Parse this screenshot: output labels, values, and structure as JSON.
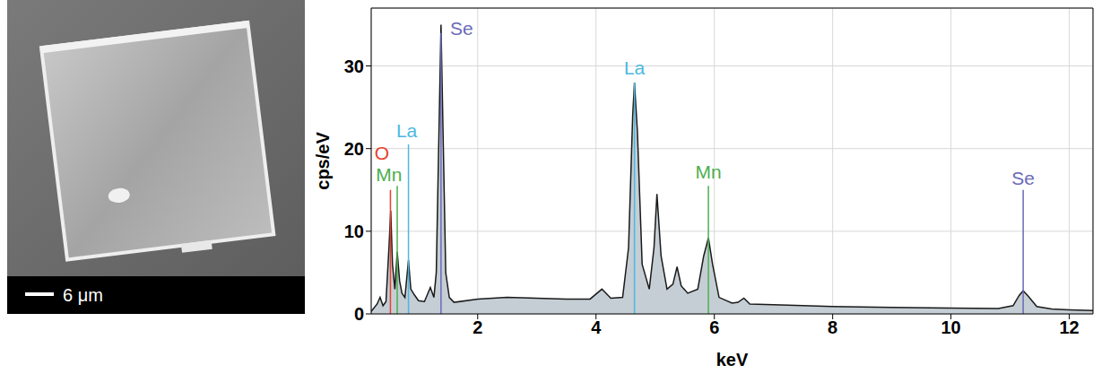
{
  "image": {
    "scale_bar": "6 μm"
  },
  "chart_data": {
    "type": "area",
    "x_label": "keV",
    "y_label": "cps/eV",
    "color": "#c5ced4",
    "grid": true,
    "xlim": [
      0.2,
      12.4
    ],
    "ylim": [
      0,
      37
    ],
    "xticks": [
      2,
      4,
      6,
      8,
      10,
      12
    ],
    "yticks": [
      0,
      10,
      20,
      30
    ],
    "x": [
      0.2,
      0.3,
      0.35,
      0.4,
      0.45,
      0.5,
      0.53,
      0.56,
      0.6,
      0.64,
      0.68,
      0.72,
      0.77,
      0.83,
      0.87,
      0.93,
      1.0,
      1.1,
      1.2,
      1.26,
      1.3,
      1.34,
      1.38,
      1.42,
      1.46,
      1.52,
      1.6,
      2.0,
      2.5,
      3.0,
      3.5,
      3.9,
      4.1,
      4.25,
      4.45,
      4.55,
      4.62,
      4.65,
      4.7,
      4.78,
      4.9,
      4.98,
      5.03,
      5.1,
      5.2,
      5.3,
      5.37,
      5.44,
      5.55,
      5.72,
      5.82,
      5.9,
      5.97,
      6.08,
      6.3,
      6.4,
      6.5,
      6.6,
      7.0,
      8.0,
      9.0,
      10.0,
      10.8,
      11.05,
      11.15,
      11.22,
      11.3,
      11.45,
      11.7,
      12.0,
      12.4
    ],
    "values": [
      0.3,
      1.2,
      2.0,
      1.0,
      1.5,
      8,
      12.5,
      6,
      3,
      7.5,
      4,
      2.5,
      2.0,
      6.5,
      3,
      2.3,
      1.6,
      1.5,
      3.2,
      2,
      5,
      20,
      35,
      20,
      5,
      2,
      1.4,
      1.8,
      2.0,
      1.9,
      1.8,
      1.8,
      3,
      1.9,
      2.0,
      8,
      24,
      28,
      22,
      6,
      3,
      8,
      14.5,
      7,
      3,
      3.6,
      5.7,
      3.4,
      2.5,
      3,
      7,
      9.2,
      6,
      2.0,
      1.3,
      1.4,
      1.9,
      1.2,
      1.1,
      0.9,
      0.8,
      0.7,
      0.65,
      1.0,
      2.2,
      2.8,
      2.2,
      0.9,
      0.6,
      0.5,
      0.4
    ],
    "annotations": [
      {
        "text": "O",
        "x": 0.38,
        "y": 19.5,
        "color": "#e8412c"
      },
      {
        "text": "La",
        "x": 0.8,
        "y": 22.2,
        "color": "#4db8e0"
      },
      {
        "text": "Mn",
        "x": 0.5,
        "y": 16.9,
        "color": "#4caf50"
      },
      {
        "text": "Se",
        "x": 1.73,
        "y": 34.5,
        "color": "#6a6ab8"
      },
      {
        "text": "La",
        "x": 4.65,
        "y": 29.8,
        "color": "#4db8e0"
      },
      {
        "text": "Mn",
        "x": 5.9,
        "y": 17.2,
        "color": "#4caf50"
      },
      {
        "text": "Se",
        "x": 11.22,
        "y": 16.4,
        "color": "#6a6ab8"
      }
    ],
    "element_lines": [
      {
        "x": 0.525,
        "height": 15,
        "color": "#e8412c"
      },
      {
        "x": 0.64,
        "height": 15.5,
        "color": "#4caf50"
      },
      {
        "x": 0.83,
        "height": 20.5,
        "color": "#4db8e0"
      },
      {
        "x": 1.38,
        "height": 34,
        "color": "#6a6ab8"
      },
      {
        "x": 4.65,
        "height": 28,
        "color": "#4db8e0"
      },
      {
        "x": 5.9,
        "height": 15.5,
        "color": "#4caf50"
      },
      {
        "x": 11.22,
        "height": 15,
        "color": "#6a6ab8"
      }
    ]
  }
}
